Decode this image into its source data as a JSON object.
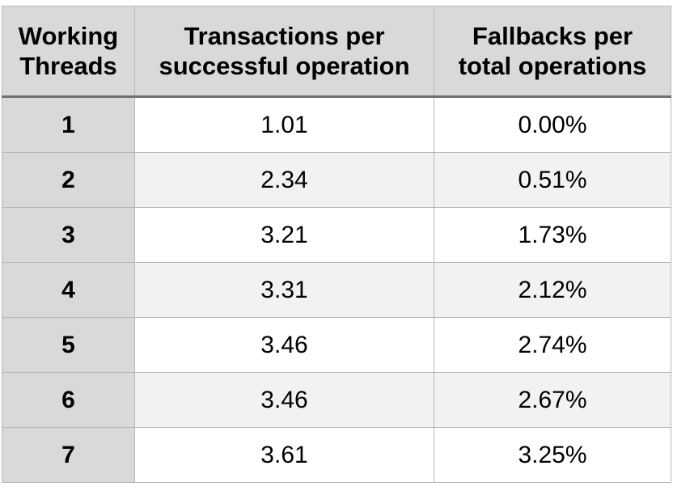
{
  "chart_data": {
    "type": "table",
    "columns": [
      [
        "Working",
        "Threads"
      ],
      [
        "Transactions per",
        "successful operation"
      ],
      [
        "Fallbacks per",
        "total operations"
      ]
    ],
    "rows": [
      [
        "1",
        "1.01",
        "0.00%"
      ],
      [
        "2",
        "2.34",
        "0.51%"
      ],
      [
        "3",
        "3.21",
        "1.73%"
      ],
      [
        "4",
        "3.31",
        "2.12%"
      ],
      [
        "5",
        "3.46",
        "2.74%"
      ],
      [
        "6",
        "3.46",
        "2.67%"
      ],
      [
        "7",
        "3.61",
        "3.25%"
      ]
    ]
  },
  "colors": {
    "header_bg": "#d9d9d9",
    "row_header_bg": "#d9d9d9",
    "stripe_bg": "#f2f2f2",
    "border": "#b9b9b9",
    "header_rule": "#707070"
  }
}
